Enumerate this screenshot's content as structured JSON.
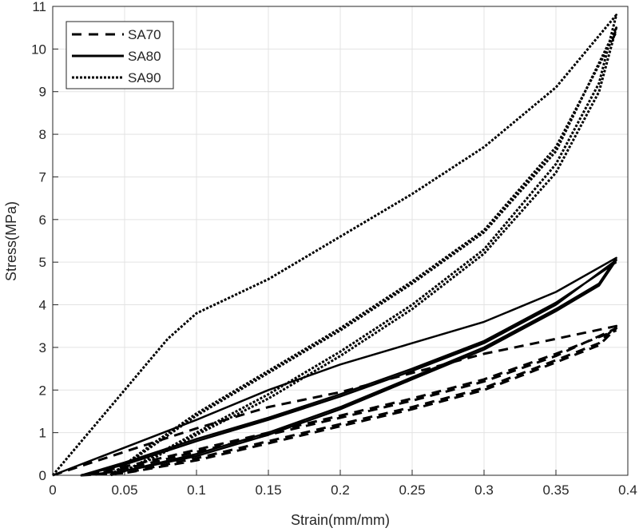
{
  "chart_data": {
    "type": "line",
    "xlabel": "Strain(mm/mm)",
    "ylabel": "Stress(MPa)",
    "xlim": [
      0,
      0.4
    ],
    "ylim": [
      0,
      11
    ],
    "xticks": [
      "0",
      "0.05",
      "0.1",
      "0.15",
      "0.2",
      "0.25",
      "0.3",
      "0.35",
      "0.4"
    ],
    "yticks": [
      "0",
      "1",
      "2",
      "3",
      "4",
      "5",
      "6",
      "7",
      "8",
      "9",
      "10",
      "11"
    ],
    "grid": true,
    "legend_position": "top-left",
    "series": [
      {
        "name": "SA70",
        "style": "dashed",
        "x": [
          0,
          0.05,
          0.1,
          0.15,
          0.2,
          0.25,
          0.3,
          0.35,
          0.392,
          0.38,
          0.35,
          0.3,
          0.25,
          0.2,
          0.15,
          0.1,
          0.05,
          0.02,
          0.05,
          0.1,
          0.15,
          0.2,
          0.25,
          0.3,
          0.35,
          0.392,
          0.38,
          0.35,
          0.3,
          0.25,
          0.2,
          0.15,
          0.1,
          0.05,
          0.02,
          0.05,
          0.1,
          0.15,
          0.2,
          0.25,
          0.3,
          0.35,
          0.392
        ],
        "y": [
          0,
          0.55,
          1.1,
          1.6,
          1.95,
          2.4,
          2.85,
          3.2,
          3.5,
          3.1,
          2.7,
          2.05,
          1.6,
          1.2,
          0.8,
          0.4,
          0.05,
          0,
          0.15,
          0.55,
          0.95,
          1.35,
          1.75,
          2.2,
          2.8,
          3.45,
          3.05,
          2.65,
          2.0,
          1.55,
          1.15,
          0.75,
          0.35,
          0.05,
          0,
          0.2,
          0.6,
          1.0,
          1.4,
          1.8,
          2.25,
          2.85,
          3.4
        ]
      },
      {
        "name": "SA80",
        "style": "solid",
        "x": [
          0,
          0.05,
          0.1,
          0.15,
          0.2,
          0.25,
          0.3,
          0.35,
          0.392,
          0.38,
          0.35,
          0.3,
          0.25,
          0.2,
          0.15,
          0.1,
          0.05,
          0.02,
          0.05,
          0.1,
          0.15,
          0.2,
          0.25,
          0.3,
          0.35,
          0.392,
          0.38,
          0.35,
          0.3,
          0.25,
          0.2,
          0.15,
          0.1,
          0.05,
          0.02,
          0.05,
          0.1,
          0.15,
          0.2,
          0.25,
          0.3,
          0.35,
          0.392
        ],
        "y": [
          0,
          0.65,
          1.3,
          2.0,
          2.6,
          3.1,
          3.6,
          4.3,
          5.1,
          4.5,
          3.9,
          3.0,
          2.3,
          1.6,
          1.0,
          0.5,
          0.1,
          0,
          0.25,
          0.8,
          1.3,
          1.85,
          2.45,
          3.1,
          4.0,
          5.05,
          4.45,
          3.85,
          2.95,
          2.25,
          1.55,
          0.95,
          0.45,
          0.1,
          0,
          0.3,
          0.85,
          1.35,
          1.9,
          2.5,
          3.15,
          4.05,
          5.0
        ]
      },
      {
        "name": "SA90",
        "style": "dotted",
        "x": [
          0,
          0.02,
          0.05,
          0.08,
          0.1,
          0.15,
          0.2,
          0.25,
          0.3,
          0.35,
          0.392,
          0.38,
          0.35,
          0.3,
          0.25,
          0.2,
          0.15,
          0.1,
          0.07,
          0.05,
          0.04,
          0.07,
          0.1,
          0.15,
          0.2,
          0.25,
          0.3,
          0.35,
          0.392,
          0.38,
          0.35,
          0.3,
          0.25,
          0.2,
          0.15,
          0.1,
          0.07,
          0.05,
          0.04,
          0.07,
          0.1,
          0.15,
          0.2,
          0.25,
          0.3,
          0.35,
          0.392
        ],
        "y": [
          0,
          0.8,
          2.0,
          3.2,
          3.8,
          4.6,
          5.6,
          6.6,
          7.7,
          9.1,
          10.8,
          9.2,
          7.3,
          5.3,
          4.0,
          2.9,
          1.9,
          1.0,
          0.45,
          0.1,
          0,
          0.7,
          1.4,
          2.4,
          3.4,
          4.5,
          5.7,
          7.6,
          10.5,
          9.0,
          7.1,
          5.2,
          3.9,
          2.8,
          1.8,
          0.95,
          0.4,
          0.1,
          0,
          0.75,
          1.45,
          2.45,
          3.45,
          4.55,
          5.75,
          7.7,
          10.4
        ]
      }
    ]
  }
}
